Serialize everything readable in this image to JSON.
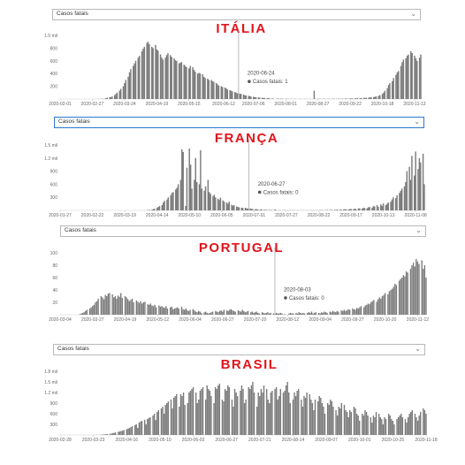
{
  "panels": [
    {
      "country_label": "ITÁLIA",
      "dropdown_value": "Casos fatais",
      "dropdown_active": false,
      "tooltip": {
        "date": "2020-06-24",
        "series": "Casos fatais",
        "value": "1"
      }
    },
    {
      "country_label": "FRANÇA",
      "dropdown_value": "Casos fatais",
      "dropdown_active": true,
      "tooltip": {
        "date": "2020-06-27",
        "series": "Casos fatais",
        "value": "0"
      }
    },
    {
      "country_label": "PORTUGAL",
      "dropdown_value": "Casos fatais",
      "dropdown_active": false,
      "tooltip": {
        "date": "2020-08-03",
        "series": "Casos fatais",
        "value": "0"
      }
    },
    {
      "country_label": "BRASIL",
      "dropdown_value": "Casos fatais",
      "dropdown_active": false,
      "tooltip": null
    }
  ],
  "chart_data": [
    {
      "type": "bar",
      "series_name": "Casos fatais",
      "bar_color": "#7a7a7a",
      "x_start": "2020-02-01",
      "x_end": "2020-11-18",
      "x_ticks": [
        "2020-02-01",
        "2020-02-27",
        "2020-03-24",
        "2020-04-19",
        "2020-05-15",
        "2020-06-12",
        "2020-07-06",
        "2020-08-01",
        "2020-08-27",
        "2020-09-22",
        "2020-10-18",
        "2020-11-13"
      ],
      "y_ticks": [
        "1.0 mil",
        "800",
        "600",
        "400",
        "200"
      ],
      "y_tick_values": [
        1000,
        800,
        600,
        400,
        200
      ],
      "ylim": [
        0,
        1000
      ],
      "highlight_date": "2020-06-24",
      "daily_values": [
        0,
        0,
        0,
        0,
        0,
        0,
        0,
        0,
        0,
        0,
        0,
        0,
        0,
        0,
        0,
        0,
        0,
        0,
        0,
        0,
        0,
        1,
        1,
        2,
        2,
        5,
        4,
        12,
        21,
        28,
        30,
        40,
        60,
        80,
        100,
        130,
        160,
        200,
        250,
        300,
        350,
        420,
        470,
        520,
        560,
        600,
        650,
        680,
        750,
        790,
        820,
        880,
        900,
        860,
        820,
        800,
        850,
        780,
        760,
        700,
        650,
        620,
        650,
        690,
        720,
        690,
        660,
        640,
        610,
        600,
        560,
        570,
        580,
        540,
        520,
        500,
        480,
        520,
        500,
        460,
        430,
        400,
        410,
        400,
        390,
        350,
        330,
        320,
        300,
        300,
        280,
        270,
        250,
        230,
        210,
        200,
        190,
        180,
        170,
        150,
        140,
        130,
        120,
        110,
        100,
        90,
        85,
        80,
        70,
        60,
        55,
        50,
        45,
        40,
        35,
        30,
        28,
        25,
        22,
        20,
        18,
        16,
        14,
        12,
        10,
        8,
        5,
        1,
        5,
        8,
        6,
        5,
        4,
        3,
        3,
        2,
        2,
        2,
        3,
        2,
        1,
        2,
        2,
        1,
        1,
        2,
        1,
        1,
        2,
        1,
        130,
        3,
        2,
        4,
        3,
        2,
        3,
        4,
        3,
        2,
        3,
        4,
        5,
        4,
        3,
        5,
        6,
        5,
        8,
        5,
        6,
        10,
        8,
        9,
        12,
        10,
        14,
        12,
        15,
        18,
        16,
        20,
        22,
        25,
        28,
        30,
        35,
        40,
        50,
        60,
        80,
        100,
        130,
        170,
        220,
        250,
        280,
        330,
        380,
        420,
        440,
        520,
        580,
        620,
        640,
        680,
        700,
        750,
        720,
        680,
        640,
        600,
        650,
        700
      ],
      "title": "",
      "xlabel": "",
      "ylabel": "",
      "grid": false,
      "legend": "none"
    },
    {
      "type": "bar",
      "series_name": "Casos fatais",
      "bar_color": "#7a7a7a",
      "x_start": "2020-01-27",
      "x_end": "2020-11-15",
      "x_ticks": [
        "2020-01-27",
        "2020-02-22",
        "2020-03-19",
        "2020-04-14",
        "2020-05-10",
        "2020-06-05",
        "2020-07-01",
        "2020-07-27",
        "2020-08-22",
        "2020-09-17",
        "2020-10-13",
        "2020-11-08"
      ],
      "y_ticks": [
        "1.5 mil",
        "1.2 mil",
        "900",
        "600",
        "300"
      ],
      "y_tick_values": [
        1500,
        1200,
        900,
        600,
        300
      ],
      "ylim": [
        0,
        1500
      ],
      "highlight_date": "2020-06-27",
      "daily_values": [
        0,
        0,
        0,
        0,
        0,
        0,
        0,
        0,
        0,
        0,
        0,
        0,
        0,
        0,
        0,
        0,
        0,
        0,
        0,
        0,
        0,
        0,
        0,
        0,
        0,
        0,
        0,
        0,
        0,
        0,
        0,
        0,
        0,
        0,
        0,
        0,
        0,
        0,
        0,
        0,
        0,
        0,
        0,
        0,
        0,
        0,
        0,
        0,
        1,
        2,
        3,
        5,
        8,
        12,
        20,
        30,
        40,
        60,
        80,
        100,
        120,
        180,
        220,
        250,
        300,
        350,
        400,
        420,
        480,
        520,
        600,
        700,
        1400,
        1340,
        100,
        980,
        1420,
        1050,
        500,
        700,
        1200,
        650,
        600,
        1380,
        500,
        450,
        550,
        700,
        420,
        380,
        330,
        360,
        300,
        270,
        240,
        290,
        230,
        200,
        180,
        150,
        200,
        130,
        110,
        120,
        90,
        80,
        70,
        60,
        55,
        60,
        50,
        40,
        45,
        35,
        30,
        25,
        30,
        20,
        18,
        25,
        15,
        10,
        15,
        12,
        8,
        10,
        8,
        20,
        6,
        5,
        8,
        4,
        6,
        5,
        4,
        3,
        5,
        8,
        3,
        4,
        5,
        3,
        4,
        3,
        2,
        4,
        3,
        5,
        6,
        4,
        5,
        3,
        4,
        6,
        5,
        8,
        6,
        7,
        10,
        8,
        12,
        10,
        14,
        12,
        18,
        15,
        20,
        22,
        25,
        28,
        20,
        30,
        35,
        25,
        40,
        30,
        45,
        50,
        40,
        60,
        55,
        50,
        70,
        80,
        60,
        100,
        90,
        120,
        80,
        140,
        100,
        160,
        120,
        150,
        180,
        200,
        250,
        300,
        280,
        350,
        400,
        450,
        500,
        550,
        650,
        900,
        1000,
        700,
        1250,
        800,
        1350,
        950,
        1200,
        1100,
        1300,
        600
      ],
      "title": "",
      "xlabel": "",
      "ylabel": "",
      "grid": false,
      "legend": "none"
    },
    {
      "type": "bar",
      "series_name": "Casos fatais",
      "bar_color": "#7a7a7a",
      "x_start": "2020-03-04",
      "x_end": "2020-11-18",
      "x_ticks": [
        "2020-03-04",
        "2020-03-27",
        "2020-04-19",
        "2020-05-12",
        "2020-06-04",
        "2020-06-27",
        "2020-07-20",
        "2020-08-12",
        "2020-09-04",
        "2020-09-27",
        "2020-10-20",
        "2020-11-12"
      ],
      "y_ticks": [
        "100",
        "80",
        "60",
        "40",
        "20"
      ],
      "y_tick_values": [
        100,
        80,
        60,
        40,
        20
      ],
      "ylim": [
        0,
        100
      ],
      "highlight_date": "2020-08-03",
      "daily_values": [
        0,
        0,
        0,
        0,
        0,
        0,
        0,
        0,
        0,
        0,
        0,
        0,
        1,
        2,
        3,
        4,
        6,
        8,
        10,
        12,
        14,
        16,
        20,
        22,
        26,
        30,
        28,
        25,
        32,
        30,
        34,
        35,
        33,
        28,
        30,
        26,
        31,
        29,
        35,
        27,
        30,
        28,
        25,
        22,
        24,
        26,
        20,
        23,
        21,
        19,
        22,
        18,
        20,
        21,
        17,
        16,
        18,
        15,
        14,
        16,
        12,
        15,
        13,
        14,
        12,
        11,
        14,
        10,
        12,
        13,
        9,
        10,
        11,
        12,
        10,
        13,
        9,
        8,
        10,
        7,
        6,
        8,
        9,
        7,
        5,
        4,
        6,
        5,
        3,
        4,
        5,
        3,
        2,
        3,
        4,
        5,
        6,
        5,
        4,
        6,
        7,
        5,
        8,
        7,
        6,
        8,
        9,
        7,
        6,
        5,
        7,
        6,
        5,
        8,
        6,
        4,
        5,
        6,
        4,
        5,
        3,
        4,
        5,
        3,
        2,
        4,
        3,
        2,
        3,
        4,
        2,
        3,
        2,
        1,
        3,
        2,
        2,
        3,
        2,
        1,
        0,
        0,
        2,
        3,
        2,
        2,
        3,
        2,
        4,
        3,
        2,
        3,
        2,
        3,
        4,
        3,
        5,
        2,
        3,
        4,
        3,
        2,
        4,
        3,
        5,
        4,
        3,
        5,
        4,
        6,
        5,
        4,
        6,
        5,
        7,
        6,
        8,
        6,
        7,
        9,
        8,
        10,
        9,
        8,
        11,
        10,
        12,
        14,
        12,
        15,
        16,
        18,
        17,
        20,
        22,
        24,
        21,
        25,
        28,
        26,
        30,
        32,
        35,
        33,
        38,
        40,
        42,
        45,
        50,
        48,
        55,
        58,
        60,
        64,
        62,
        70,
        68,
        74,
        80,
        84,
        78,
        90,
        86,
        82,
        88,
        74,
        80,
        60
      ],
      "title": "",
      "xlabel": "",
      "ylabel": "",
      "grid": false,
      "legend": "none"
    },
    {
      "type": "bar",
      "series_name": "Casos fatais",
      "bar_color": "#7a7a7a",
      "x_start": "2020-02-28",
      "x_end": "2020-11-18",
      "x_ticks": [
        "2020-02-28",
        "2020-03-23",
        "2020-04-16",
        "2020-05-10",
        "2020-06-03",
        "2020-06-27",
        "2020-07-21",
        "2020-08-14",
        "2020-09-07",
        "2020-10-01",
        "2020-10-25",
        "2020-11-18"
      ],
      "y_ticks": [
        "1.8 mil",
        "1.5 mil",
        "1.2 mil",
        "900",
        "600",
        "300"
      ],
      "y_tick_values": [
        1800,
        1500,
        1200,
        900,
        600,
        300
      ],
      "ylim": [
        0,
        1800
      ],
      "highlight_date": "",
      "daily_values": [
        0,
        0,
        0,
        0,
        0,
        0,
        0,
        0,
        0,
        0,
        0,
        0,
        0,
        0,
        0,
        0,
        0,
        0,
        0,
        0,
        0,
        1,
        2,
        3,
        5,
        8,
        10,
        15,
        20,
        25,
        30,
        40,
        50,
        60,
        70,
        90,
        100,
        110,
        120,
        140,
        160,
        180,
        200,
        220,
        250,
        280,
        300,
        200,
        350,
        380,
        400,
        430,
        300,
        450,
        480,
        500,
        550,
        600,
        420,
        650,
        700,
        750,
        800,
        600,
        850,
        900,
        950,
        1000,
        750,
        1050,
        1100,
        1150,
        800,
        1150,
        1100,
        1200,
        850,
        900,
        1200,
        1250,
        1300,
        1350,
        1200,
        900,
        1000,
        1250,
        1300,
        1350,
        1000,
        1400,
        1300,
        1250,
        1100,
        900,
        1350,
        1300,
        1400,
        1450,
        1000,
        950,
        1300,
        1250,
        1400,
        1350,
        1000,
        800,
        1300,
        1200,
        1100,
        1250,
        1400,
        1300,
        900,
        1000,
        1350,
        1300,
        1400,
        1500,
        1200,
        800,
        1200,
        1100,
        1300,
        1200,
        1400,
        1300,
        1000,
        900,
        1200,
        1250,
        1300,
        1350,
        1000,
        1100,
        1300,
        1200,
        1250,
        1400,
        1500,
        1200,
        900,
        1000,
        1200,
        1100,
        1250,
        1300,
        1000,
        800,
        1100,
        1050,
        1200,
        1150,
        1000,
        900,
        700,
        1000,
        950,
        1100,
        1050,
        900,
        800,
        600,
        900,
        850,
        1000,
        950,
        800,
        700,
        550,
        800,
        750,
        900,
        850,
        700,
        650,
        500,
        700,
        650,
        800,
        750,
        600,
        550,
        400,
        600,
        550,
        700,
        650,
        550,
        500,
        350,
        550,
        500,
        650,
        600,
        500,
        450,
        300,
        500,
        450,
        600,
        550,
        450,
        400,
        300,
        450,
        500,
        550,
        600,
        500,
        450,
        350,
        500,
        600,
        650,
        700,
        600,
        500,
        400,
        550,
        650,
        750,
        700,
        600
      ]
    }
  ]
}
